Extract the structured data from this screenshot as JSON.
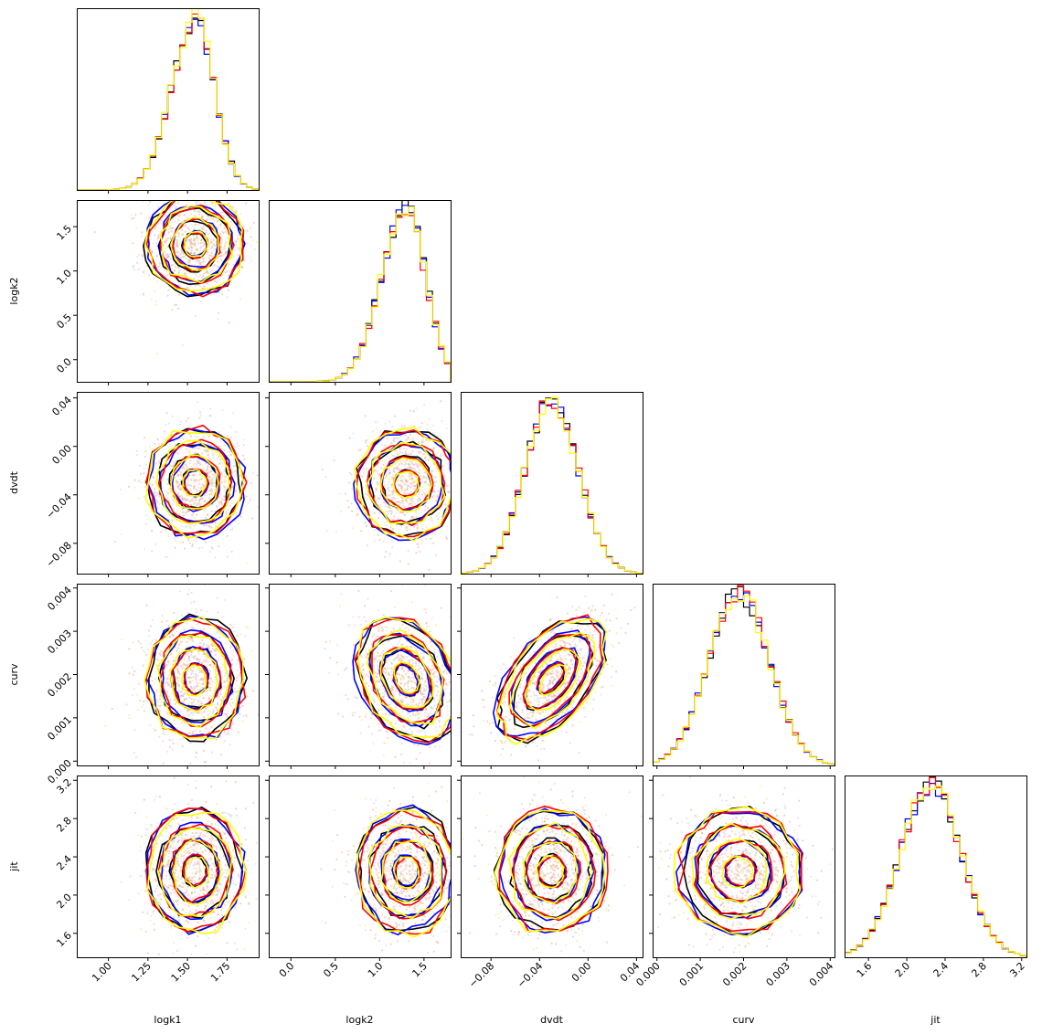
{
  "chart_data": {
    "type": "corner",
    "parameters": [
      "logk1",
      "logk2",
      "dvdt",
      "curv",
      "jit"
    ],
    "axis_labels": [
      "logk1",
      "logk2",
      "dvdt",
      "curv",
      "jit"
    ],
    "ranges": [
      [
        0.8,
        1.95
      ],
      [
        -0.25,
        1.8
      ],
      [
        -0.105,
        0.045
      ],
      [
        -0.0001,
        0.0041
      ],
      [
        1.35,
        3.25
      ]
    ],
    "ticks": [
      [
        1.0,
        1.25,
        1.5,
        1.75
      ],
      [
        0.0,
        0.5,
        1.0,
        1.5
      ],
      [
        -0.08,
        -0.04,
        0.0,
        0.04
      ],
      [
        0.0,
        0.001,
        0.002,
        0.003,
        0.004
      ],
      [
        1.6,
        2.0,
        2.4,
        2.8,
        3.2
      ]
    ],
    "tick_labels": [
      [
        "1.00",
        "1.25",
        "1.50",
        "1.75"
      ],
      [
        "0.0",
        "0.5",
        "1.0",
        "1.5"
      ],
      [
        "−0.08",
        "−0.04",
        "0.00",
        "0.04"
      ],
      [
        "0.000",
        "0.001",
        "0.002",
        "0.003",
        "0.004"
      ],
      [
        "1.6",
        "2.0",
        "2.4",
        "2.8",
        "3.2"
      ]
    ],
    "series_colors": [
      "#000000",
      "#0000ff",
      "#ff0000",
      "#ffff00"
    ],
    "sample_colors": [
      "#d4a373",
      "#ff9c9c",
      "#c8c8ff",
      "#f2e07a"
    ],
    "means": [
      1.55,
      1.3,
      -0.03,
      0.0019,
      2.25
    ],
    "sigmas": [
      0.15,
      0.28,
      0.022,
      0.0007,
      0.32
    ],
    "correlations": [
      {
        "pair": [
          2,
          3
        ],
        "rho": 0.55
      },
      {
        "pair": [
          1,
          3
        ],
        "rho": -0.3
      }
    ],
    "contour_levels_sigma": [
      0.5,
      1.0,
      1.5,
      2.0
    ],
    "grid": false
  }
}
